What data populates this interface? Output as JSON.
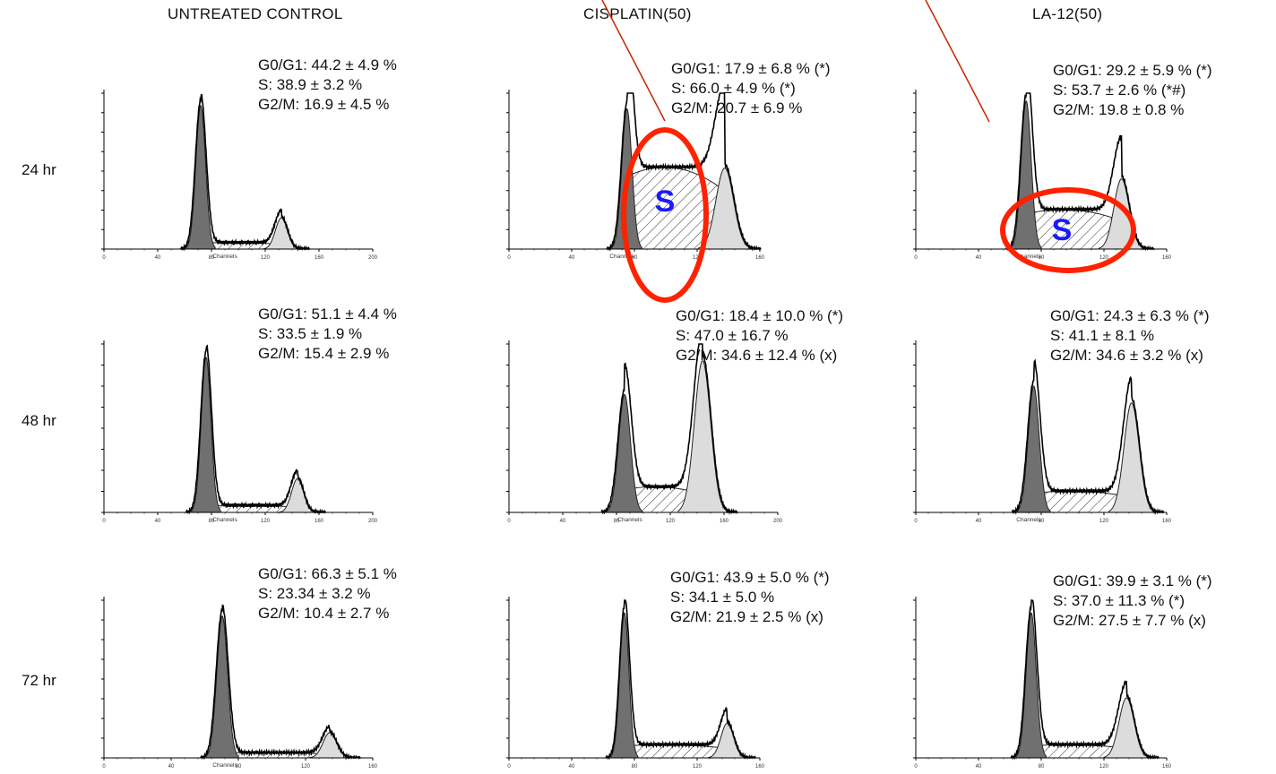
{
  "column_headers": [
    "UNTREATED CONTROL",
    "CISPLATIN(50)",
    "LA-12(50)"
  ],
  "row_labels": [
    "24 hr",
    "48 hr",
    "72 hr"
  ],
  "axis": {
    "x_label": "Channels"
  },
  "annotation": {
    "label": "S"
  },
  "colors": {
    "g1_fill": "#707070",
    "s_hatch": "#333333",
    "g2_fill": "#dcdcdc",
    "circle": "#ff2200",
    "label": "#1a1aff",
    "arrow": "#cc2200"
  },
  "chart_data": [
    {
      "type": "area",
      "time": "24 hr",
      "treatment": "UNTREATED CONTROL",
      "xticks": [
        "0",
        "40",
        "80",
        "120",
        "160",
        "200"
      ],
      "x_label": "Channels",
      "stats": [
        "G0/G1: 44.2 ± 4.9 %",
        "S: 38.9 ± 3.2 %",
        "G2/M: 16.9 ± 4.5 %"
      ],
      "phases": {
        "G0/G1": 44.2,
        "S": 38.9,
        "G2/M": 16.9
      },
      "profile": {
        "g1_center": 0.36,
        "g1_height": 0.92,
        "g1_width": 0.018,
        "s_level": 0.05,
        "g2_center": 0.66,
        "g2_height": 0.2,
        "g2_width": 0.022
      }
    },
    {
      "type": "area",
      "time": "24 hr",
      "treatment": "CISPLATIN(50)",
      "xticks": [
        "0",
        "40",
        "80",
        "120",
        "160"
      ],
      "x_label": "Channels",
      "stats": [
        "G0/G1: 17.9 ± 6.8 % (*)",
        "S: 66.0 ± 4.9 % (*)",
        "G2/M: 20.7 ± 6.9 %"
      ],
      "phases": {
        "G0/G1": 17.9,
        "S": 66.0,
        "G2/M": 20.7
      },
      "profile": {
        "g1_center": 0.47,
        "g1_height": 0.9,
        "g1_width": 0.02,
        "s_level": 0.62,
        "g2_center": 0.86,
        "g2_height": 0.52,
        "g2_width": 0.035
      }
    },
    {
      "type": "area",
      "time": "24 hr",
      "treatment": "LA-12(50)",
      "xticks": [
        "0",
        "40",
        "80",
        "120",
        "160"
      ],
      "x_label": "Channels",
      "stats": [
        "G0/G1: 29.2 ± 5.9 % (*)",
        "S: 53.7 ± 2.6 % (*#)",
        "G2/M: 19.8 ± 0.8 %"
      ],
      "phases": {
        "G0/G1": 29.2,
        "S": 53.7,
        "G2/M": 19.8
      },
      "profile": {
        "g1_center": 0.44,
        "g1_height": 0.95,
        "g1_width": 0.02,
        "s_level": 0.3,
        "g2_center": 0.82,
        "g2_height": 0.45,
        "g2_width": 0.03
      }
    },
    {
      "type": "area",
      "time": "48 hr",
      "treatment": "UNTREATED CONTROL",
      "xticks": [
        "0",
        "40",
        "80",
        "120",
        "160",
        "200"
      ],
      "x_label": "Channels",
      "stats": [
        "G0/G1: 51.1 ± 4.4 %",
        "S: 33.5 ± 1.9 %",
        "G2/M: 15.4 ± 2.9 %"
      ],
      "phases": {
        "G0/G1": 51.1,
        "S": 33.5,
        "G2/M": 15.4
      },
      "profile": {
        "g1_center": 0.38,
        "g1_height": 0.92,
        "g1_width": 0.018,
        "s_level": 0.05,
        "g2_center": 0.72,
        "g2_height": 0.2,
        "g2_width": 0.022
      }
    },
    {
      "type": "area",
      "time": "48 hr",
      "treatment": "CISPLATIN(50)",
      "xticks": [
        "0",
        "40",
        "80",
        "120",
        "160",
        "200"
      ],
      "x_label": "Channels",
      "stats": [
        "G0/G1: 18.4 ± 10.0 % (*)",
        "S: 47.0 ± 16.7 %",
        "G2/M: 34.6 ± 12.4 % (x)"
      ],
      "phases": {
        "G0/G1": 18.4,
        "S": 47.0,
        "G2/M": 34.6
      },
      "profile": {
        "g1_center": 0.43,
        "g1_height": 0.7,
        "g1_width": 0.022,
        "s_level": 0.18,
        "g2_center": 0.72,
        "g2_height": 0.9,
        "g2_width": 0.03
      }
    },
    {
      "type": "area",
      "time": "48 hr",
      "treatment": "LA-12(50)",
      "xticks": [
        "0",
        "40",
        "80",
        "120",
        "160"
      ],
      "x_label": "Channels",
      "stats": [
        "G0/G1: 24.3 ± 6.3 % (*)",
        "S: 41.1 ± 8.1 %",
        "G2/M: 34.6 ± 3.2 % (x)"
      ],
      "phases": {
        "G0/G1": 24.3,
        "S": 41.1,
        "G2/M": 34.6
      },
      "profile": {
        "g1_center": 0.47,
        "g1_height": 0.75,
        "g1_width": 0.022,
        "s_level": 0.15,
        "g2_center": 0.86,
        "g2_height": 0.65,
        "g2_width": 0.03
      }
    },
    {
      "type": "area",
      "time": "72 hr",
      "treatment": "UNTREATED CONTROL",
      "xticks": [
        "0",
        "40",
        "80",
        "120",
        "160"
      ],
      "x_label": "Channels",
      "stats": [
        "G0/G1: 66.3 ± 5.1 %",
        "S: 23.34 ± 3.2 %",
        "G2/M: 10.4 ± 2.7 %"
      ],
      "phases": {
        "G0/G1": 66.3,
        "S": 23.34,
        "G2/M": 10.4
      },
      "profile": {
        "g1_center": 0.44,
        "g1_height": 0.9,
        "g1_width": 0.02,
        "s_level": 0.04,
        "g2_center": 0.84,
        "g2_height": 0.16,
        "g2_width": 0.025
      }
    },
    {
      "type": "area",
      "time": "72 hr",
      "treatment": "CISPLATIN(50)",
      "xticks": [
        "0",
        "40",
        "80",
        "120",
        "160"
      ],
      "x_label": "",
      "stats": [
        "G0/G1: 43.9 ± 5.0 % (*)",
        "S: 34.1 ± 5.0 %",
        "G2/M: 21.9 ± 2.5 % (x)"
      ],
      "phases": {
        "G0/G1": 43.9,
        "S": 34.1,
        "G2/M": 21.9
      },
      "profile": {
        "g1_center": 0.46,
        "g1_height": 0.92,
        "g1_width": 0.018,
        "s_level": 0.1,
        "g2_center": 0.87,
        "g2_height": 0.22,
        "g2_width": 0.025
      }
    },
    {
      "type": "area",
      "time": "72 hr",
      "treatment": "LA-12(50)",
      "xticks": [
        "0",
        "40",
        "80",
        "120",
        "160"
      ],
      "x_label": "",
      "stats": [
        "G0/G1: 39.9 ± 3.1 % (*)",
        "S: 37.0 ± 11.3 % (*)",
        "G2/M: 27.5 ± 7.7 % (x)"
      ],
      "phases": {
        "G0/G1": 39.9,
        "S": 37.0,
        "G2/M": 27.5
      },
      "profile": {
        "g1_center": 0.46,
        "g1_height": 0.92,
        "g1_width": 0.02,
        "s_level": 0.1,
        "g2_center": 0.84,
        "g2_height": 0.38,
        "g2_width": 0.03
      }
    }
  ]
}
